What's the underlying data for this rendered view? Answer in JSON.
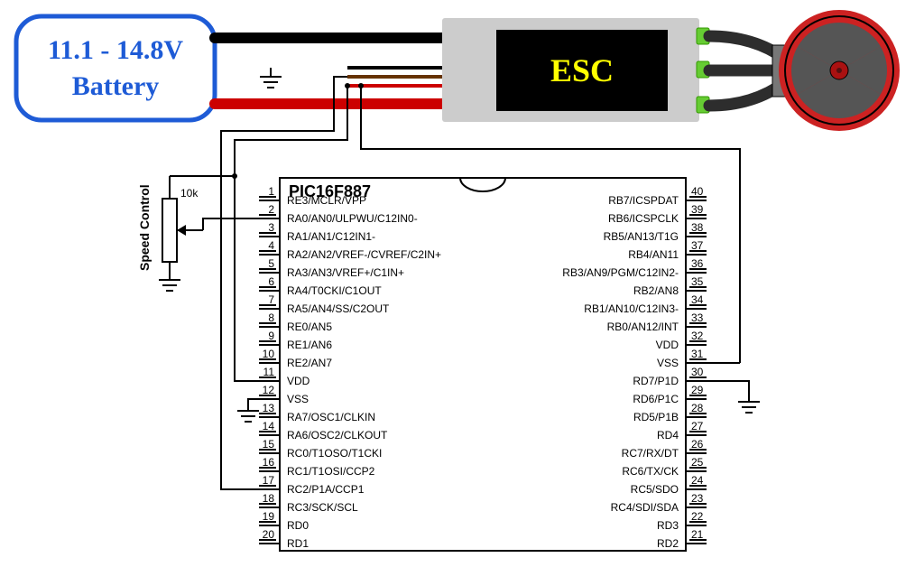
{
  "battery": {
    "line1": "11.1 - 14.8V",
    "line2": "Battery"
  },
  "esc": {
    "label": "ESC"
  },
  "speed_control": {
    "label": "Speed Control",
    "pot_value": "10k"
  },
  "chip": {
    "title": "PIC16F887",
    "left_pins": [
      {
        "n": "1",
        "lbl": "RE3/MCLR/VPP",
        "overline": "MCLR"
      },
      {
        "n": "2",
        "lbl": "RA0/AN0/ULPWU/C12IN0-"
      },
      {
        "n": "3",
        "lbl": "RA1/AN1/C12IN1-"
      },
      {
        "n": "4",
        "lbl": "RA2/AN2/VREF-/CVREF/C2IN+"
      },
      {
        "n": "5",
        "lbl": "RA3/AN3/VREF+/C1IN+"
      },
      {
        "n": "6",
        "lbl": "RA4/T0CKI/C1OUT"
      },
      {
        "n": "7",
        "lbl": "RA5/AN4/SS/C2OUT",
        "overline": "SS"
      },
      {
        "n": "8",
        "lbl": "RE0/AN5"
      },
      {
        "n": "9",
        "lbl": "RE1/AN6"
      },
      {
        "n": "10",
        "lbl": "RE2/AN7"
      },
      {
        "n": "11",
        "lbl": "VDD"
      },
      {
        "n": "12",
        "lbl": "VSS"
      },
      {
        "n": "13",
        "lbl": "RA7/OSC1/CLKIN"
      },
      {
        "n": "14",
        "lbl": "RA6/OSC2/CLKOUT"
      },
      {
        "n": "15",
        "lbl": "RC0/T1OSO/T1CKI"
      },
      {
        "n": "16",
        "lbl": "RC1/T1OSI/CCP2"
      },
      {
        "n": "17",
        "lbl": "RC2/P1A/CCP1"
      },
      {
        "n": "18",
        "lbl": "RC3/SCK/SCL"
      },
      {
        "n": "19",
        "lbl": "RD0"
      },
      {
        "n": "20",
        "lbl": "RD1"
      }
    ],
    "right_pins": [
      {
        "n": "40",
        "lbl": "RB7/ICSPDAT"
      },
      {
        "n": "39",
        "lbl": "RB6/ICSPCLK"
      },
      {
        "n": "38",
        "lbl": "RB5/AN13/T1G",
        "overline": "T1G"
      },
      {
        "n": "37",
        "lbl": "RB4/AN11"
      },
      {
        "n": "36",
        "lbl": "RB3/AN9/PGM/C12IN2-"
      },
      {
        "n": "35",
        "lbl": "RB2/AN8"
      },
      {
        "n": "34",
        "lbl": "RB1/AN10/C12IN3-"
      },
      {
        "n": "33",
        "lbl": "RB0/AN12/INT"
      },
      {
        "n": "32",
        "lbl": "VDD"
      },
      {
        "n": "31",
        "lbl": "VSS"
      },
      {
        "n": "30",
        "lbl": "RD7/P1D"
      },
      {
        "n": "29",
        "lbl": "RD6/P1C"
      },
      {
        "n": "28",
        "lbl": "RD5/P1B"
      },
      {
        "n": "27",
        "lbl": "RD4"
      },
      {
        "n": "26",
        "lbl": "RC7/RX/DT"
      },
      {
        "n": "25",
        "lbl": "RC6/TX/CK"
      },
      {
        "n": "24",
        "lbl": "RC5/SDO"
      },
      {
        "n": "23",
        "lbl": "RC4/SDI/SDA"
      },
      {
        "n": "22",
        "lbl": "RD3"
      },
      {
        "n": "21",
        "lbl": "RD2"
      }
    ]
  },
  "colors": {
    "battery_border": "#1e5bd6",
    "wire_red": "#cc0000",
    "wire_black": "#000000",
    "wire_brown": "#663300",
    "esc_body": "#cccccc",
    "esc_screen": "#000000",
    "esc_text": "#ffff00",
    "motor": "#cc2222",
    "terminal": "#66cc33"
  }
}
